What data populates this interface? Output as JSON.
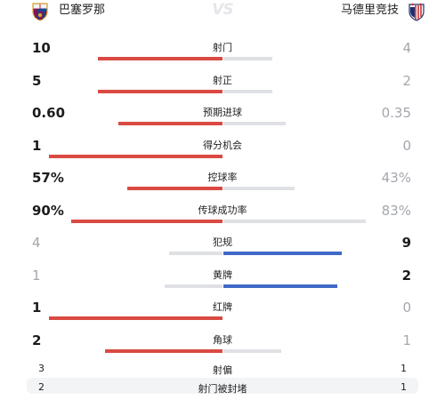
{
  "teams": {
    "home": {
      "name": "巴塞罗那",
      "color": "#d94a42"
    },
    "away": {
      "name": "马德里竞技",
      "color": "#4069c8"
    },
    "vs": "VS"
  },
  "stats": [
    {
      "label": "射门",
      "home": "10",
      "away": "4",
      "home_frac": 0.56,
      "away_frac": 0.22,
      "leader": "home"
    },
    {
      "label": "射正",
      "home": "5",
      "away": "2",
      "home_frac": 0.56,
      "away_frac": 0.22,
      "leader": "home"
    },
    {
      "label": "预期进球",
      "home": "0.60",
      "away": "0.35",
      "home_frac": 0.47,
      "away_frac": 0.28,
      "leader": "home"
    },
    {
      "label": "得分机会",
      "home": "1",
      "away": "0",
      "home_frac": 0.78,
      "away_frac": 0.0,
      "leader": "home"
    },
    {
      "label": "控球率",
      "home": "57%",
      "away": "43%",
      "home_frac": 0.43,
      "away_frac": 0.32,
      "leader": "home"
    },
    {
      "label": "传球成功率",
      "home": "90%",
      "away": "83%",
      "home_frac": 0.68,
      "away_frac": 0.64,
      "leader": "home"
    },
    {
      "label": "犯规",
      "home": "4",
      "away": "9",
      "home_frac": 0.24,
      "away_frac": 0.53,
      "leader": "away"
    },
    {
      "label": "黄牌",
      "home": "1",
      "away": "2",
      "home_frac": 0.26,
      "away_frac": 0.51,
      "leader": "away"
    },
    {
      "label": "红牌",
      "home": "1",
      "away": "0",
      "home_frac": 0.78,
      "away_frac": 0.0,
      "leader": "home"
    },
    {
      "label": "角球",
      "home": "2",
      "away": "1",
      "home_frac": 0.53,
      "away_frac": 0.26,
      "leader": "home"
    }
  ],
  "extra": [
    {
      "label": "射偏",
      "home": "3",
      "away": "1"
    },
    {
      "label": "射门被封堵",
      "home": "2",
      "away": "1"
    }
  ]
}
